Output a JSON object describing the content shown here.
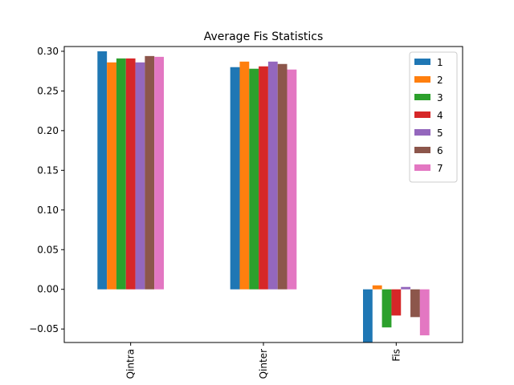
{
  "chart_data": {
    "type": "bar",
    "title": "Average Fis Statistics",
    "xlabel": "",
    "ylabel": "",
    "categories": [
      "Qintra",
      "Qinter",
      "Fis"
    ],
    "ylim": [
      -0.067,
      0.306
    ],
    "yticks": [
      -0.05,
      0.0,
      0.05,
      0.1,
      0.15,
      0.2,
      0.25,
      0.3
    ],
    "ytick_labels": [
      "−0.05",
      "0.00",
      "0.05",
      "0.10",
      "0.15",
      "0.20",
      "0.25",
      "0.30"
    ],
    "legend_position": "top-right",
    "grid": false,
    "series": [
      {
        "name": "1",
        "color": "#1f77b4",
        "values": [
          0.3,
          0.28,
          -0.067
        ]
      },
      {
        "name": "2",
        "color": "#ff7f0e",
        "values": [
          0.286,
          0.287,
          0.005
        ]
      },
      {
        "name": "3",
        "color": "#2ca02c",
        "values": [
          0.291,
          0.278,
          -0.048
        ]
      },
      {
        "name": "4",
        "color": "#d62728",
        "values": [
          0.291,
          0.281,
          -0.033
        ]
      },
      {
        "name": "5",
        "color": "#9467bd",
        "values": [
          0.286,
          0.287,
          0.003
        ]
      },
      {
        "name": "6",
        "color": "#8c564b",
        "values": [
          0.294,
          0.284,
          -0.035
        ]
      },
      {
        "name": "7",
        "color": "#e377c2",
        "values": [
          0.293,
          0.277,
          -0.058
        ]
      }
    ]
  }
}
